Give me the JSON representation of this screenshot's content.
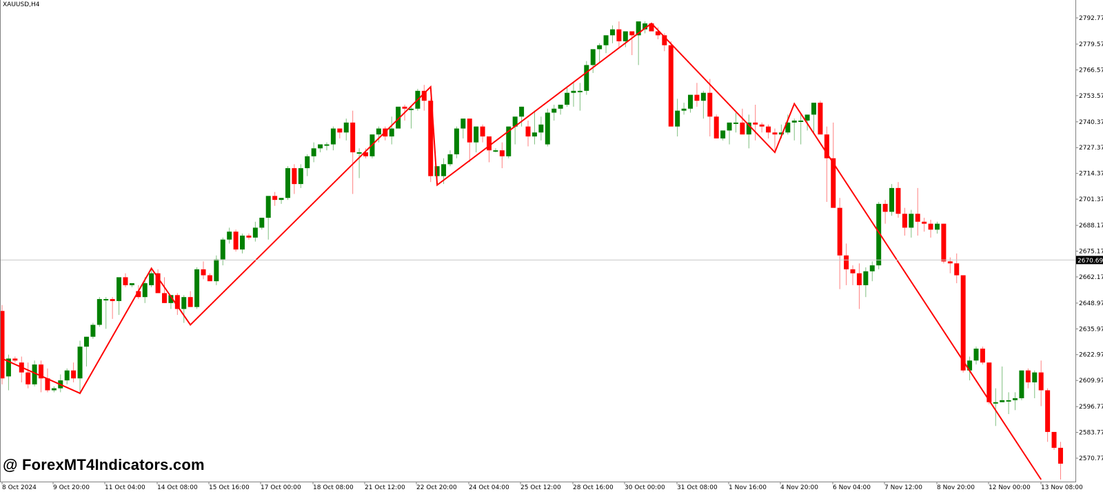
{
  "window": {
    "title": "XAUUSD,H4"
  },
  "watermark": "@ ForexMT4Indicators.com",
  "colors": {
    "bull": "#008000",
    "bear": "#ff0000",
    "zigzag": "#ff0000",
    "bid_line": "#c8c8c8",
    "axis": "#808080",
    "price_tag_bg": "#000000",
    "price_tag_fg": "#ffffff"
  },
  "current_price": "2670.694",
  "chart_data": {
    "type": "candlestick",
    "title": "XAUUSD,H4",
    "xlabel": "",
    "ylabel": "",
    "ylim": [
      2564,
      2800
    ],
    "grid": false,
    "y_ticks": [
      "2792.770",
      "2779.570",
      "2766.570",
      "2753.570",
      "2740.370",
      "2727.370",
      "2714.370",
      "2701.370",
      "2688.170",
      "2675.170",
      "2662.170",
      "2648.970",
      "2635.970",
      "2622.970",
      "2609.970",
      "2596.770",
      "2583.770",
      "2570.770"
    ],
    "x_ticks": [
      "8 Oct 2024",
      "9 Oct 20:00",
      "11 Oct 04:00",
      "14 Oct 08:00",
      "15 Oct 16:00",
      "17 Oct 00:00",
      "18 Oct 08:00",
      "21 Oct 12:00",
      "22 Oct 20:00",
      "24 Oct 04:00",
      "25 Oct 12:00",
      "28 Oct 16:00",
      "30 Oct 00:00",
      "31 Oct 08:00",
      "1 Nov 16:00",
      "4 Nov 20:00",
      "6 Nov 04:00",
      "7 Nov 12:00",
      "8 Nov 20:00",
      "12 Nov 00:00",
      "13 Nov 08:00"
    ],
    "current_price": 2670.694,
    "zigzag": [
      {
        "x_index": 0,
        "price": 2621.0
      },
      {
        "x_index": 12,
        "price": 2603.5
      },
      {
        "x_index": 23,
        "price": 2666.5
      },
      {
        "x_index": 29,
        "price": 2638.0
      },
      {
        "x_index": 66,
        "price": 2758.0
      },
      {
        "x_index": 67,
        "price": 2708.5
      },
      {
        "x_index": 100,
        "price": 2790.0
      },
      {
        "x_index": 119,
        "price": 2725.0
      },
      {
        "x_index": 122,
        "price": 2749.5
      },
      {
        "x_index": 160,
        "price": 2560.0
      }
    ],
    "candles": [
      [
        2645,
        2648,
        2608,
        2611
      ],
      [
        2612,
        2623,
        2605,
        2621
      ],
      [
        2621,
        2622,
        2619,
        2620
      ],
      [
        2619,
        2622,
        2609,
        2614
      ],
      [
        2614,
        2619,
        2606,
        2608
      ],
      [
        2608,
        2620,
        2607,
        2618
      ],
      [
        2618,
        2620,
        2604,
        2611
      ],
      [
        2611,
        2616,
        2604,
        2605
      ],
      [
        2605,
        2607,
        2604,
        2606
      ],
      [
        2606,
        2613,
        2604,
        2610
      ],
      [
        2610,
        2616,
        2608,
        2615
      ],
      [
        2615,
        2619,
        2609,
        2611
      ],
      [
        2611,
        2630,
        2603,
        2627
      ],
      [
        2627,
        2630,
        2617,
        2632
      ],
      [
        2632,
        2639,
        2631,
        2638
      ],
      [
        2638,
        2652,
        2637,
        2651
      ],
      [
        2651,
        2652,
        2636,
        2651
      ],
      [
        2651,
        2652,
        2641,
        2650
      ],
      [
        2650,
        2662,
        2643,
        2662
      ],
      [
        2662,
        2664,
        2657,
        2658
      ],
      [
        2658,
        2659,
        2657,
        2659
      ],
      [
        2655,
        2658,
        2651,
        2652
      ],
      [
        2652,
        2662,
        2649,
        2659
      ],
      [
        2658,
        2667,
        2657,
        2664
      ],
      [
        2664,
        2666,
        2655,
        2654
      ],
      [
        2654,
        2662,
        2649,
        2649
      ],
      [
        2649,
        2653,
        2646,
        2653
      ],
      [
        2653,
        2654,
        2643,
        2646
      ],
      [
        2646,
        2653,
        2639,
        2652
      ],
      [
        2652,
        2655,
        2647,
        2647
      ],
      [
        2647,
        2667,
        2646,
        2666
      ],
      [
        2666,
        2670,
        2661,
        2663
      ],
      [
        2663,
        2664,
        2660,
        2660
      ],
      [
        2660,
        2673,
        2658,
        2671
      ],
      [
        2671,
        2682,
        2668,
        2681
      ],
      [
        2681,
        2687,
        2679,
        2685
      ],
      [
        2685,
        2686,
        2675,
        2676
      ],
      [
        2676,
        2684,
        2674,
        2683
      ],
      [
        2683,
        2684,
        2681,
        2682
      ],
      [
        2682,
        2690,
        2680,
        2687
      ],
      [
        2687,
        2692,
        2686,
        2692
      ],
      [
        2692,
        2703,
        2681,
        2703
      ],
      [
        2703,
        2705,
        2698,
        2701
      ],
      [
        2701,
        2702,
        2699,
        2702
      ],
      [
        2702,
        2718,
        2701,
        2717
      ],
      [
        2717,
        2719,
        2704,
        2709
      ],
      [
        2709,
        2719,
        2707,
        2717
      ],
      [
        2717,
        2724,
        2713,
        2723
      ],
      [
        2723,
        2730,
        2720,
        2727
      ],
      [
        2727,
        2729,
        2725,
        2729
      ],
      [
        2729,
        2730,
        2726,
        2729
      ],
      [
        2729,
        2738,
        2726,
        2737
      ],
      [
        2737,
        2737,
        2732,
        2735
      ],
      [
        2735,
        2742,
        2731,
        2740
      ],
      [
        2740,
        2746,
        2704,
        2725
      ],
      [
        2725,
        2727,
        2712,
        2725
      ],
      [
        2725,
        2727,
        2722,
        2723
      ],
      [
        2723,
        2734,
        2722,
        2734
      ],
      [
        2734,
        2738,
        2730,
        2737
      ],
      [
        2737,
        2738,
        2731,
        2733
      ],
      [
        2733,
        2743,
        2729,
        2737
      ],
      [
        2737,
        2748,
        2737,
        2748
      ],
      [
        2748,
        2749,
        2741,
        2747
      ],
      [
        2747,
        2748,
        2737,
        2747
      ],
      [
        2747,
        2757,
        2746,
        2756
      ],
      [
        2756,
        2759,
        2746,
        2751
      ],
      [
        2751,
        2752,
        2710,
        2713
      ],
      [
        2713,
        2717,
        2709,
        2718
      ],
      [
        2713,
        2722,
        2709,
        2719
      ],
      [
        2719,
        2726,
        2718,
        2724
      ],
      [
        2724,
        2738,
        2722,
        2737
      ],
      [
        2737,
        2742,
        2732,
        2742
      ],
      [
        2742,
        2741,
        2720,
        2730
      ],
      [
        2730,
        2738,
        2725,
        2738
      ],
      [
        2738,
        2739,
        2730,
        2733
      ],
      [
        2733,
        2732,
        2720,
        2726
      ],
      [
        2726,
        2727,
        2725,
        2726
      ],
      [
        2726,
        2730,
        2717,
        2723
      ],
      [
        2723,
        2738,
        2722,
        2738
      ],
      [
        2738,
        2743,
        2729,
        2743
      ],
      [
        2743,
        2747,
        2738,
        2748
      ],
      [
        2738,
        2741,
        2728,
        2733
      ],
      [
        2733,
        2746,
        2729,
        2735
      ],
      [
        2735,
        2743,
        2731,
        2739
      ],
      [
        2729,
        2747,
        2728,
        2745
      ],
      [
        2745,
        2749,
        2741,
        2747
      ],
      [
        2747,
        2748,
        2744,
        2749
      ],
      [
        2749,
        2758,
        2748,
        2755
      ],
      [
        2755,
        2760,
        2748,
        2756
      ],
      [
        2756,
        2760,
        2746,
        2756
      ],
      [
        2756,
        2771,
        2754,
        2769
      ],
      [
        2769,
        2776,
        2765,
        2777
      ],
      [
        2777,
        2780,
        2770,
        2779
      ],
      [
        2779,
        2784,
        2775,
        2784
      ],
      [
        2784,
        2789,
        2780,
        2787
      ],
      [
        2787,
        2791,
        2778,
        2781
      ],
      [
        2781,
        2785,
        2778,
        2786
      ],
      [
        2786,
        2786,
        2774,
        2784
      ],
      [
        2784,
        2789,
        2769,
        2791
      ],
      [
        2787,
        2791,
        2785,
        2790
      ],
      [
        2790,
        2790,
        2786,
        2786
      ],
      [
        2786,
        2788,
        2782,
        2784
      ],
      [
        2784,
        2785,
        2776,
        2779
      ],
      [
        2779,
        2781,
        2764,
        2738
      ],
      [
        2738,
        2752,
        2733,
        2746
      ],
      [
        2746,
        2750,
        2744,
        2747
      ],
      [
        2747,
        2753,
        2745,
        2754
      ],
      [
        2754,
        2760,
        2748,
        2751
      ],
      [
        2751,
        2756,
        2742,
        2755
      ],
      [
        2755,
        2762,
        2733,
        2743
      ],
      [
        2743,
        2744,
        2732,
        2732
      ],
      [
        2732,
        2736,
        2731,
        2736
      ],
      [
        2736,
        2740,
        2729,
        2740
      ],
      [
        2740,
        2745,
        2735,
        2740
      ],
      [
        2740,
        2747,
        2735,
        2734
      ],
      [
        2734,
        2744,
        2727,
        2740
      ],
      [
        2740,
        2749,
        2731,
        2739
      ],
      [
        2739,
        2740,
        2735,
        2738
      ],
      [
        2738,
        2739,
        2732,
        2735
      ],
      [
        2735,
        2737,
        2726,
        2734
      ],
      [
        2734,
        2739,
        2732,
        2735
      ],
      [
        2735,
        2744,
        2734,
        2740
      ],
      [
        2740,
        2742,
        2731,
        2741
      ],
      [
        2741,
        2745,
        2729,
        2741
      ],
      [
        2741,
        2741,
        2736,
        2744
      ],
      [
        2744,
        2749,
        2735,
        2750
      ],
      [
        2750,
        2751,
        2740,
        2734
      ],
      [
        2734,
        2738,
        2700,
        2722
      ],
      [
        2722,
        2740,
        2701,
        2697
      ],
      [
        2697,
        2702,
        2656,
        2673
      ],
      [
        2673,
        2679,
        2658,
        2666
      ],
      [
        2666,
        2668,
        2658,
        2664
      ],
      [
        2664,
        2669,
        2646,
        2658
      ],
      [
        2658,
        2667,
        2652,
        2665
      ],
      [
        2665,
        2670,
        2660,
        2668
      ],
      [
        2668,
        2700,
        2666,
        2699
      ],
      [
        2699,
        2701,
        2689,
        2695
      ],
      [
        2695,
        2709,
        2693,
        2707
      ],
      [
        2707,
        2710,
        2692,
        2694
      ],
      [
        2694,
        2697,
        2683,
        2687
      ],
      [
        2687,
        2696,
        2682,
        2694
      ],
      [
        2694,
        2707,
        2683,
        2690
      ],
      [
        2690,
        2692,
        2685,
        2689
      ],
      [
        2689,
        2691,
        2682,
        2686
      ],
      [
        2686,
        2690,
        2684,
        2689
      ],
      [
        2689,
        2689,
        2669,
        2670
      ],
      [
        2670,
        2672,
        2664,
        2669
      ],
      [
        2669,
        2674,
        2659,
        2663
      ],
      [
        2663,
        2663,
        2614,
        2615
      ],
      [
        2615,
        2622,
        2610,
        2620
      ],
      [
        2620,
        2627,
        2618,
        2626
      ],
      [
        2626,
        2627,
        2618,
        2619
      ],
      [
        2619,
        2619,
        2598,
        2599
      ],
      [
        2599,
        2606,
        2587,
        2599
      ],
      [
        2599,
        2617,
        2599,
        2600
      ],
      [
        2600,
        2604,
        2593,
        2600
      ],
      [
        2600,
        2604,
        2595,
        2601
      ],
      [
        2601,
        2614,
        2600,
        2615
      ],
      [
        2615,
        2616,
        2606,
        2609
      ],
      [
        2609,
        2615,
        2601,
        2614
      ],
      [
        2614,
        2620,
        2597,
        2605
      ],
      [
        2605,
        2606,
        2579,
        2584
      ],
      [
        2584,
        2584,
        2575,
        2576
      ],
      [
        2576,
        2579,
        2560,
        2568
      ]
    ]
  }
}
